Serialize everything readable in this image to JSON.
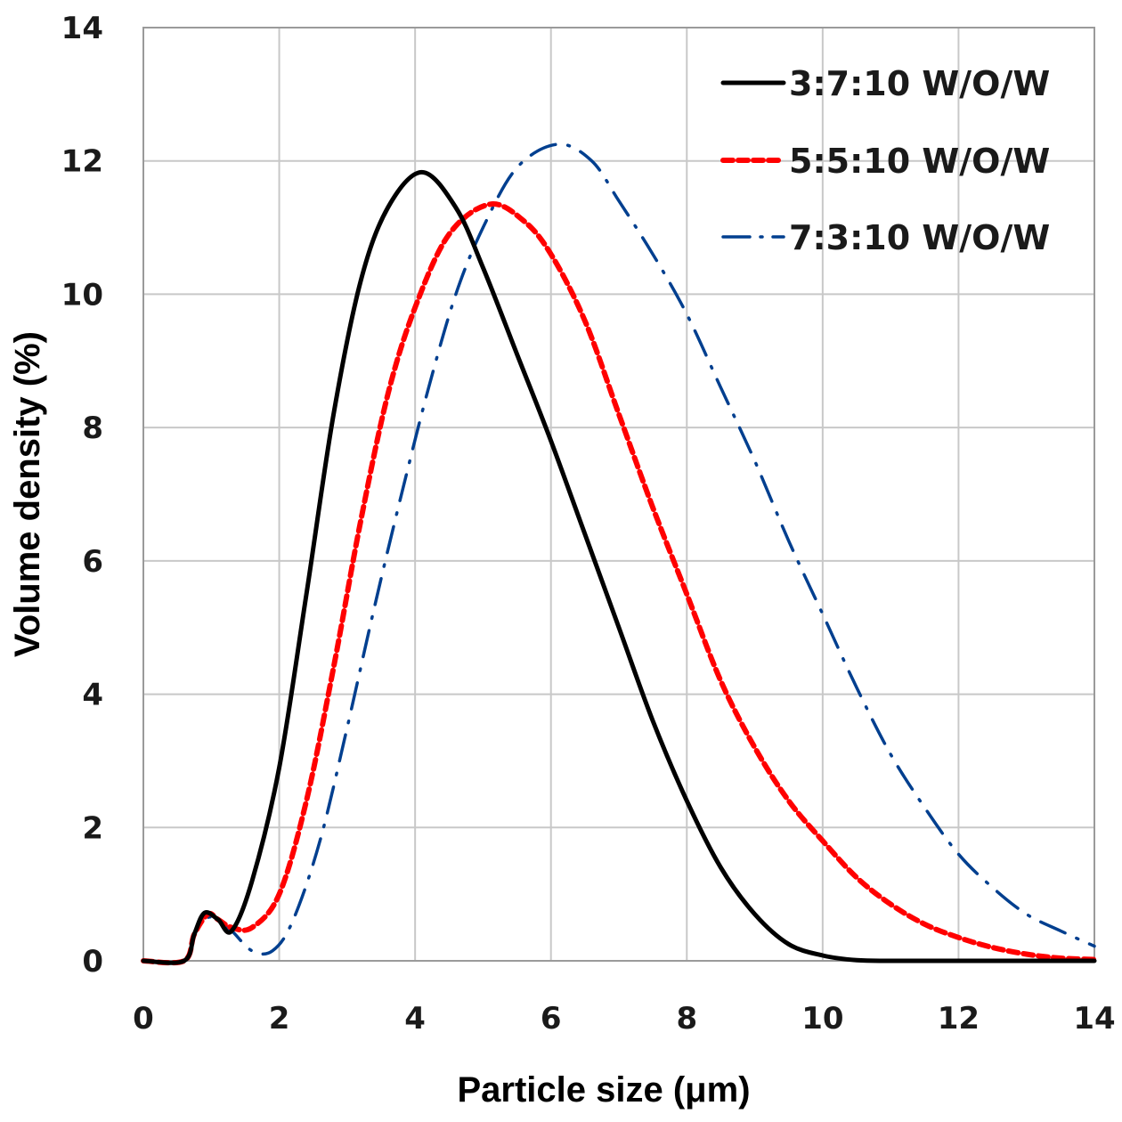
{
  "chart_data": {
    "type": "line",
    "title": "",
    "xlabel": "Particle size (μm)",
    "ylabel": "Volume density (%)",
    "xlim": [
      0,
      14
    ],
    "ylim": [
      0,
      14
    ],
    "xticks": [
      0,
      2,
      4,
      6,
      8,
      10,
      12,
      14
    ],
    "yticks": [
      0,
      2,
      4,
      6,
      8,
      10,
      12,
      14
    ],
    "xtick_labels": [
      "0",
      "2",
      "4",
      "6",
      "8",
      "10",
      "12",
      "14"
    ],
    "ytick_labels": [
      "0",
      "2",
      "4",
      "6",
      "8",
      "10",
      "12",
      "14"
    ],
    "grid": true,
    "legend_position": "top-right",
    "series": [
      {
        "name": "3:7:10 W/O/W",
        "color": "#000000",
        "style": "solid",
        "x": [
          0,
          0.6,
          0.75,
          0.9,
          1.1,
          1.3,
          1.6,
          2.0,
          2.4,
          2.8,
          3.2,
          3.6,
          4.1,
          4.6,
          5.0,
          5.5,
          6.0,
          6.5,
          7.0,
          7.5,
          8.0,
          8.5,
          9.0,
          9.5,
          10.0,
          10.5,
          11.0,
          12.0,
          13.0,
          14.0
        ],
        "y": [
          0,
          0,
          0.4,
          0.72,
          0.62,
          0.45,
          1.2,
          2.9,
          5.5,
          8.2,
          10.2,
          11.3,
          11.83,
          11.3,
          10.4,
          9.1,
          7.8,
          6.4,
          5.0,
          3.6,
          2.4,
          1.4,
          0.7,
          0.25,
          0.08,
          0.01,
          0,
          0,
          0,
          0
        ]
      },
      {
        "name": "5:5:10 W/O/W",
        "color": "#ff0000",
        "style": "dashed",
        "x": [
          0,
          0.6,
          0.75,
          0.95,
          1.1,
          1.3,
          1.6,
          2.0,
          2.4,
          2.8,
          3.2,
          3.6,
          4.0,
          4.5,
          5.1,
          5.6,
          6.0,
          6.5,
          7.0,
          7.5,
          8.0,
          8.5,
          9.0,
          9.5,
          10.0,
          10.5,
          11.0,
          11.5,
          12.0,
          12.5,
          13.0,
          13.5,
          14.0
        ],
        "y": [
          0,
          0,
          0.4,
          0.7,
          0.62,
          0.5,
          0.5,
          1.0,
          2.4,
          4.4,
          6.6,
          8.5,
          9.8,
          10.9,
          11.35,
          11.1,
          10.6,
          9.6,
          8.2,
          6.8,
          5.5,
          4.2,
          3.2,
          2.4,
          1.8,
          1.25,
          0.85,
          0.55,
          0.35,
          0.2,
          0.1,
          0.04,
          0.02
        ]
      },
      {
        "name": "7:3:10 W/O/W",
        "color": "#003f8f",
        "style": "dashdot",
        "x": [
          0,
          0.6,
          0.75,
          0.95,
          1.1,
          1.3,
          1.6,
          1.9,
          2.2,
          2.6,
          3.0,
          3.4,
          3.8,
          4.2,
          4.6,
          5.0,
          5.5,
          6.1,
          6.6,
          7.0,
          7.5,
          8.0,
          8.5,
          9.0,
          9.5,
          10.0,
          10.5,
          11.0,
          11.5,
          12.0,
          12.5,
          13.0,
          13.5,
          14.0
        ],
        "y": [
          0,
          0,
          0.4,
          0.65,
          0.58,
          0.45,
          0.15,
          0.15,
          0.6,
          1.8,
          3.5,
          5.3,
          7.0,
          8.6,
          10.0,
          11.0,
          11.9,
          12.25,
          12.0,
          11.4,
          10.6,
          9.7,
          8.6,
          7.5,
          6.3,
          5.2,
          4.1,
          3.1,
          2.3,
          1.6,
          1.1,
          0.7,
          0.45,
          0.22
        ]
      }
    ]
  }
}
